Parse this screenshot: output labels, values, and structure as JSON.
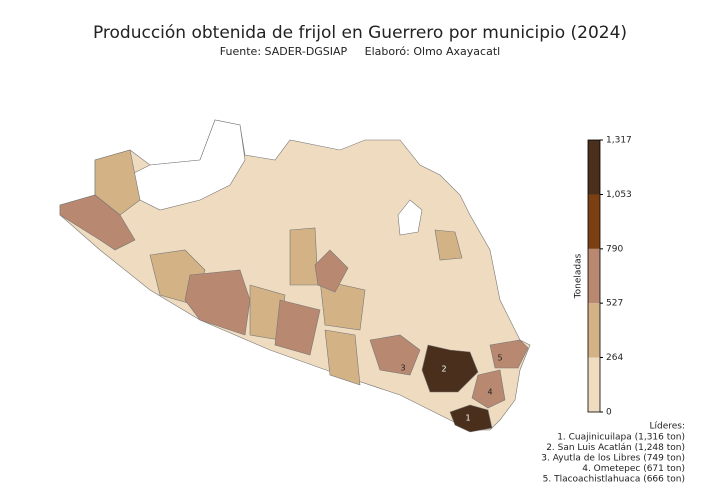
{
  "title": "Producción obtenida de frijol en Guerrero por municipio (2024)",
  "subtitle": "Fuente: SADER-DGSIAP     Elaboró: Olmo Axayacatl",
  "colorbar": {
    "label": "Toneladas",
    "range": [
      0,
      1317
    ],
    "ticks": [
      0,
      264,
      527,
      790,
      {
        "value": 1053,
        "label": "1,053"
      },
      {
        "value": 1317,
        "label": "1,317"
      }
    ],
    "colors": [
      "#efdcc0",
      "#d3b285",
      "#b98870",
      "#7b3f12",
      "#4a2f1c"
    ]
  },
  "markers": [
    1,
    2,
    3,
    4,
    5
  ],
  "leaders": {
    "heading": "Líderes:",
    "items": [
      "1. Cuajinicuilapa (1,316 ton)",
      "2. San Luis Acatlán (1,248 ton)",
      "3. Ayutla de los Libres (749 ton)",
      "4. Ometepec (671 ton)",
      "5. Tlacoachistlahuaca (666 ton)"
    ]
  }
}
